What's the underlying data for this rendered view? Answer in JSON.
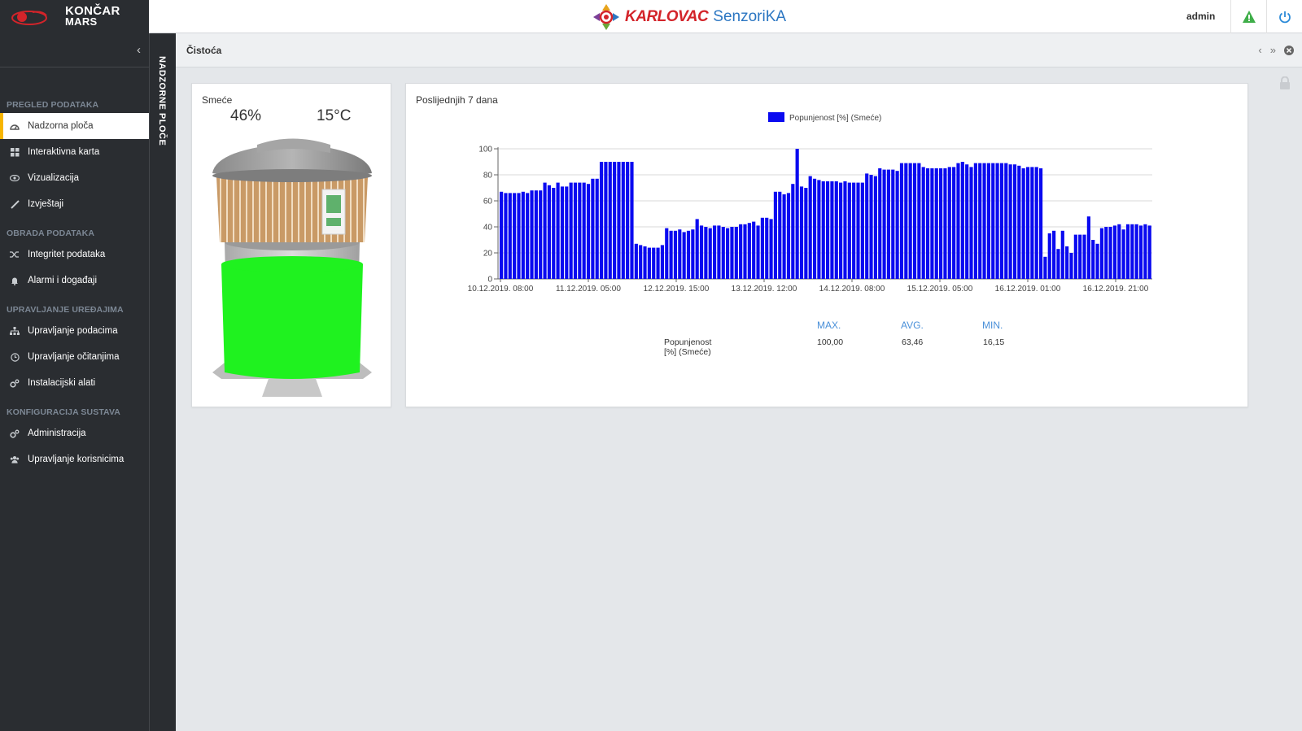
{
  "brand": {
    "line1": "KONČAR",
    "line2": "MARS"
  },
  "center_logo": {
    "city": "KARLOVAC",
    "product": "SenzoriKA"
  },
  "header": {
    "user": "admin"
  },
  "sidebar": {
    "sections": [
      {
        "title": "PREGLED PODATAKA",
        "items": [
          {
            "label": "Nadzorna ploča",
            "icon": "dashboard-icon",
            "active": true
          },
          {
            "label": "Interaktivna karta",
            "icon": "grid-icon"
          },
          {
            "label": "Vizualizacija",
            "icon": "eye-icon"
          },
          {
            "label": "Izvještaji",
            "icon": "pencil-icon"
          }
        ]
      },
      {
        "title": "OBRADA PODATAKA",
        "items": [
          {
            "label": "Integritet podataka",
            "icon": "shuffle-icon"
          },
          {
            "label": "Alarmi i događaji",
            "icon": "bell-icon"
          }
        ]
      },
      {
        "title": "UPRAVLJANJE UREĐAJIMA",
        "items": [
          {
            "label": "Upravljanje podacima",
            "icon": "sitemap-icon"
          },
          {
            "label": "Upravljanje očitanjima",
            "icon": "clock-icon"
          },
          {
            "label": "Instalacijski alati",
            "icon": "cogs-icon"
          }
        ]
      },
      {
        "title": "KONFIGURACIJA SUSTAVA",
        "items": [
          {
            "label": "Administracija",
            "icon": "cogs-icon"
          },
          {
            "label": "Upravljanje korisnicima",
            "icon": "users-icon"
          }
        ]
      }
    ]
  },
  "rail": {
    "label": "NADZORNE PLOČE"
  },
  "page": {
    "title": "Čistoća"
  },
  "bin_widget": {
    "title": "Smeće",
    "fill": "46%",
    "fill_fraction": 0.46,
    "temperature": "15°C",
    "fill_color": "#1ff21f"
  },
  "chart_widget": {
    "title": "Poslijednjih 7 dana"
  },
  "chart_data": {
    "type": "bar",
    "legend": "Popunjenost [%] (Smeće)",
    "legend_position": "top-center",
    "bar_color": "#0a0af0",
    "ylim": [
      0,
      100
    ],
    "yticks": [
      0,
      20,
      40,
      60,
      80,
      100
    ],
    "xtick_labels": [
      "10.12.2019. 08:00",
      "11.12.2019. 05:00",
      "12.12.2019. 15:00",
      "13.12.2019. 12:00",
      "14.12.2019. 08:00",
      "15.12.2019. 05:00",
      "16.12.2019. 01:00",
      "16.12.2019. 21:00"
    ],
    "grid": true,
    "values": [
      67,
      66,
      66,
      66,
      66,
      67,
      66,
      68,
      68,
      68,
      74,
      72,
      70,
      74,
      71,
      71,
      74,
      74,
      74,
      74,
      73,
      77,
      77,
      90,
      90,
      90,
      90,
      90,
      90,
      90,
      90,
      27,
      26,
      25,
      24,
      24,
      24,
      26,
      39,
      37,
      37,
      38,
      36,
      37,
      38,
      46,
      41,
      40,
      39,
      41,
      41,
      40,
      39,
      40,
      40,
      42,
      42,
      43,
      44,
      41,
      47,
      47,
      46,
      67,
      67,
      65,
      66,
      73,
      100,
      71,
      70,
      79,
      77,
      76,
      75,
      75,
      75,
      75,
      74,
      75,
      74,
      74,
      74,
      74,
      81,
      80,
      79,
      85,
      84,
      84,
      84,
      83,
      89,
      89,
      89,
      89,
      89,
      86,
      85,
      85,
      85,
      85,
      85,
      86,
      86,
      89,
      90,
      88,
      86,
      89,
      89,
      89,
      89,
      89,
      89,
      89,
      89,
      88,
      88,
      87,
      85,
      86,
      86,
      86,
      85,
      17,
      35,
      37,
      23,
      37,
      25,
      20,
      34,
      34,
      34,
      48,
      30,
      27,
      39,
      40,
      40,
      41,
      42,
      38,
      42,
      42,
      42,
      41,
      42,
      41
    ],
    "stats": {
      "headers": [
        "MAX.",
        "AVG.",
        "MIN."
      ],
      "row_label": "Popunjenost [%] (Smeće)",
      "values": [
        "100,00",
        "63,46",
        "16,15"
      ]
    }
  }
}
